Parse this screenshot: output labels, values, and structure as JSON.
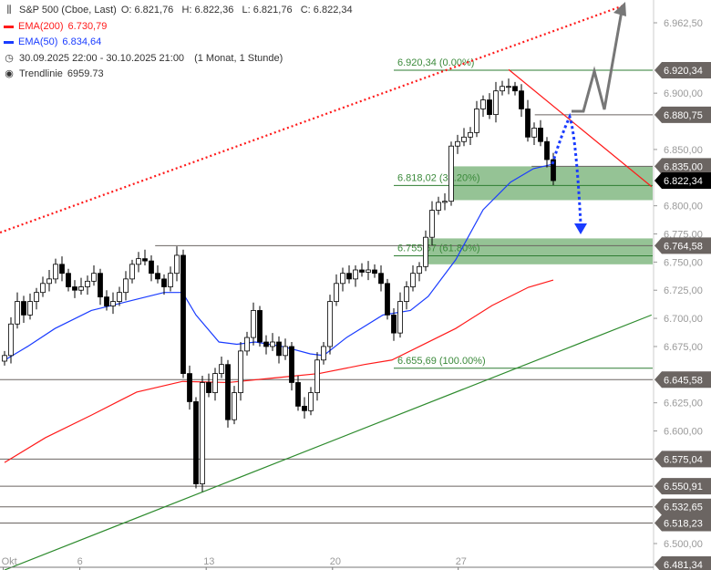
{
  "legend": {
    "instrument": "S&P 500 (Cboe, Last)",
    "ohlc": "O: 6.821,76   H: 6.822,36   L: 6.821,76   C: 6.822,34",
    "ema200_label": "EMA(200)",
    "ema200_value": "6.730,79",
    "ema50_label": "EMA(50)",
    "ema50_value": "6.834,64",
    "range": "30.09.2025 22:00 - 30.10.2025 21:00",
    "period": "(1 Monat, 1 Stunde)",
    "trend_label": "Trendlinie",
    "trend_value": "6959.73",
    "icons": [
      "candlestick-icon",
      "clock-icon",
      "target-icon"
    ]
  },
  "colors": {
    "ema200": "#ff1a1a",
    "ema50": "#1a3cff",
    "fib": "#2e7d32",
    "zone": "#8fc08f",
    "tag": "#6b6562",
    "last_tag": "#000000",
    "trend_up": "#2e8b2e"
  },
  "chart_data": {
    "type": "candlestick",
    "ylim": [
      6481.34,
      6978
    ],
    "yticks": [
      6962.5,
      6900,
      6850,
      6800,
      6775,
      6750,
      6725,
      6700,
      6675,
      6625,
      6600,
      6500
    ],
    "ytick_labels": [
      "6.962,50",
      "6.900,00",
      "6.850,00",
      "6.800,00",
      "6.775,00",
      "6.750,00",
      "6.725,00",
      "6.700,00",
      "6.675,00",
      "6.625,00",
      "6.600,00",
      "6.500,00"
    ],
    "xticks": [
      {
        "label": "Okt",
        "index": -0.2
      },
      {
        "label": "6",
        "index": 11.8
      },
      {
        "label": "13",
        "index": 31.6
      },
      {
        "label": "20",
        "index": 51.4
      },
      {
        "label": "27",
        "index": 71.1
      }
    ],
    "closes": [
      6667,
      6695,
      6715,
      6703,
      6715,
      6723,
      6731,
      6735,
      6748,
      6740,
      6728,
      6725,
      6728,
      6733,
      6740,
      6719,
      6711,
      6715,
      6723,
      6735,
      6748,
      6753,
      6751,
      6740,
      6735,
      6728,
      6740,
      6756,
      6651,
      6626,
      6553,
      6643,
      6634,
      6651,
      6659,
      6610,
      6634,
      6671,
      6683,
      6707,
      6679,
      6675,
      6679,
      6667,
      6675,
      6643,
      6622,
      6618,
      6634,
      6663,
      6675,
      6715,
      6731,
      6740,
      6735,
      6743,
      6741,
      6743,
      6740,
      6731,
      6703,
      6687,
      6715,
      6728,
      6740,
      6746,
      6772,
      6796,
      6803,
      6804,
      6853,
      6857,
      6861,
      6865,
      6886,
      6894,
      6881,
      6902,
      6906,
      6906,
      6902,
      6886,
      6861,
      6869,
      6857,
      6841,
      6822.34
    ],
    "ema50": [
      [
        0,
        6662.8
      ],
      [
        3.6,
        6675
      ],
      [
        7.9,
        6691
      ],
      [
        13.6,
        6707
      ],
      [
        19.3,
        6715
      ],
      [
        25,
        6723
      ],
      [
        27.9,
        6723
      ],
      [
        30,
        6703
      ],
      [
        33.6,
        6679
      ],
      [
        36.4,
        6677
      ],
      [
        39.3,
        6679
      ],
      [
        43.6,
        6675
      ],
      [
        47.9,
        6668.5
      ],
      [
        50,
        6667
      ],
      [
        53.6,
        6683
      ],
      [
        59.3,
        6703
      ],
      [
        63.6,
        6707
      ],
      [
        66.4,
        6719.5
      ],
      [
        70.7,
        6752
      ],
      [
        75,
        6796.5
      ],
      [
        79.3,
        6821
      ],
      [
        82.9,
        6833
      ],
      [
        86,
        6837
      ]
    ],
    "ema200": [
      [
        0,
        6572
      ],
      [
        6.4,
        6594
      ],
      [
        13.6,
        6614
      ],
      [
        20.7,
        6634.5
      ],
      [
        27.9,
        6644
      ],
      [
        35,
        6643
      ],
      [
        42.1,
        6647
      ],
      [
        49.3,
        6651
      ],
      [
        56.4,
        6659
      ],
      [
        60.7,
        6663
      ],
      [
        65,
        6675
      ],
      [
        70.7,
        6691
      ],
      [
        76.4,
        6711.4
      ],
      [
        82.1,
        6727.6
      ],
      [
        86,
        6734
      ]
    ],
    "trendlines": [
      {
        "kind": "resistance-dotted",
        "color": "#ff1a1a",
        "from": [
          -0.7,
          6776.2
        ],
        "to": [
          97.1,
          6978
        ]
      },
      {
        "kind": "support",
        "color": "#2e8b2e",
        "from": [
          0,
          6476.5
        ],
        "to": [
          101.4,
          6703
        ]
      },
      {
        "kind": "downtrend",
        "color": "#ff1a1a",
        "from": [
          79,
          6921
        ],
        "to": [
          101.4,
          6817
        ]
      }
    ],
    "levels": [
      {
        "value": 6920.34,
        "label": "6.920,34",
        "fib": "6.920,34 (0.00%)",
        "color": "#2e7d32",
        "from": 61
      },
      {
        "value": 6880.75,
        "label": "6.880,75",
        "color": "#6b6562",
        "from": 83.1
      },
      {
        "value": 6835.0,
        "label": "6.835,00",
        "color": "#6b6562",
        "from": 82.6
      },
      {
        "value": 6822.34,
        "label": "6.822,34",
        "color": "#000000",
        "last": true
      },
      {
        "value": 6818.02,
        "fib": "6.818,02 (38.20%)",
        "color": "#2e7d32",
        "from": 61
      },
      {
        "value": 6764.58,
        "label": "6.764,58",
        "color": "#6b6562",
        "from": 23.6
      },
      {
        "value": 6755.57,
        "fib": "6.755,57 (61.80%)",
        "color": "#2e7d32",
        "from": 61
      },
      {
        "value": 6655.69,
        "fib": "6.655,69 (100.00%)",
        "color": "#2e7d32",
        "from": 61
      },
      {
        "value": 6645.58,
        "label": "6.645,58",
        "color": "#6b6562",
        "from": -1
      },
      {
        "value": 6575.04,
        "label": "6.575,04",
        "color": "#6b6562",
        "from": -1
      },
      {
        "value": 6550.91,
        "label": "6.550,91",
        "color": "#6b6562",
        "from": -1
      },
      {
        "value": 6532.65,
        "label": "6.532,65",
        "color": "#6b6562",
        "from": -1
      },
      {
        "value": 6518.23,
        "label": "6.518,23",
        "color": "#6b6562",
        "from": -1
      },
      {
        "value": 6481.34,
        "label": "6.481,34",
        "color": "#6b6562"
      }
    ],
    "zones": [
      {
        "top": 6835,
        "bottom": 6805,
        "from": 70
      },
      {
        "top": 6771,
        "bottom": 6748,
        "from": 65.6
      }
    ]
  }
}
